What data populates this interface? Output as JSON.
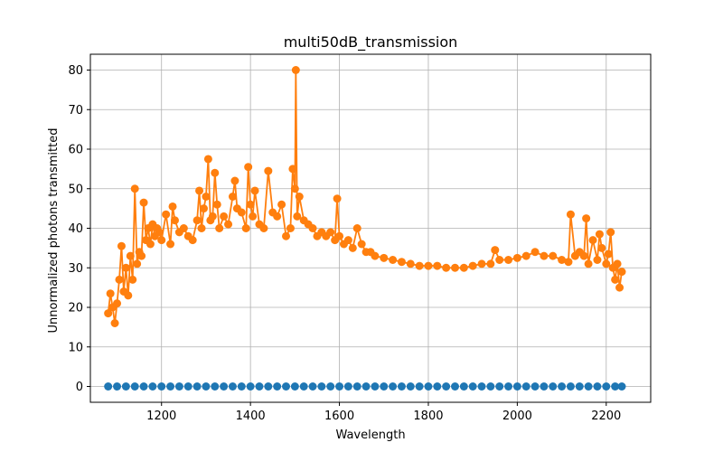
{
  "chart_data": {
    "type": "scatter",
    "title": "multi50dB_transmission",
    "xlabel": "Wavelength",
    "ylabel": "Unnormalized photons transmitted",
    "xlim": [
      1040,
      2300
    ],
    "ylim": [
      -4,
      84
    ],
    "x_ticks": [
      1200,
      1400,
      1600,
      1800,
      2000,
      2200
    ],
    "y_ticks": [
      0,
      10,
      20,
      30,
      40,
      50,
      60,
      70,
      80
    ],
    "grid": true,
    "legend": "none",
    "series": [
      {
        "color": "#1f77b4",
        "style": "markers",
        "x": [
          1080,
          1100,
          1120,
          1140,
          1160,
          1180,
          1200,
          1220,
          1240,
          1260,
          1280,
          1300,
          1320,
          1340,
          1360,
          1380,
          1400,
          1420,
          1440,
          1460,
          1480,
          1500,
          1520,
          1540,
          1560,
          1580,
          1600,
          1620,
          1640,
          1660,
          1680,
          1700,
          1720,
          1740,
          1760,
          1780,
          1800,
          1820,
          1840,
          1860,
          1880,
          1900,
          1920,
          1940,
          1960,
          1980,
          2000,
          2020,
          2040,
          2060,
          2080,
          2100,
          2120,
          2140,
          2160,
          2180,
          2200,
          2220,
          2235
        ],
        "values": [
          0,
          0,
          0,
          0,
          0,
          0,
          0,
          0,
          0,
          0,
          0,
          0,
          0,
          0,
          0,
          0,
          0,
          0,
          0,
          0,
          0,
          0,
          0,
          0,
          0,
          0,
          0,
          0,
          0,
          0,
          0,
          0,
          0,
          0,
          0,
          0,
          0,
          0,
          0,
          0,
          0,
          0,
          0,
          0,
          0,
          0,
          0,
          0,
          0,
          0,
          0,
          0,
          0,
          0,
          0,
          0,
          0,
          0,
          0
        ]
      },
      {
        "color": "#ff7f0e",
        "style": "line+markers",
        "x": [
          1080,
          1085,
          1090,
          1095,
          1100,
          1105,
          1110,
          1115,
          1120,
          1125,
          1130,
          1135,
          1140,
          1145,
          1150,
          1155,
          1160,
          1165,
          1170,
          1175,
          1180,
          1185,
          1190,
          1195,
          1200,
          1210,
          1220,
          1225,
          1230,
          1240,
          1250,
          1260,
          1270,
          1280,
          1285,
          1290,
          1295,
          1300,
          1305,
          1310,
          1315,
          1320,
          1325,
          1330,
          1340,
          1350,
          1360,
          1365,
          1370,
          1380,
          1390,
          1395,
          1400,
          1405,
          1410,
          1420,
          1430,
          1440,
          1450,
          1460,
          1470,
          1480,
          1490,
          1495,
          1500,
          1502,
          1505,
          1510,
          1520,
          1530,
          1540,
          1550,
          1560,
          1570,
          1580,
          1590,
          1595,
          1600,
          1610,
          1620,
          1630,
          1640,
          1650,
          1660,
          1670,
          1680,
          1700,
          1720,
          1740,
          1760,
          1780,
          1800,
          1820,
          1840,
          1860,
          1880,
          1900,
          1920,
          1940,
          1950,
          1960,
          1980,
          2000,
          2020,
          2040,
          2060,
          2080,
          2100,
          2115,
          2120,
          2130,
          2140,
          2150,
          2155,
          2160,
          2170,
          2180,
          2185,
          2190,
          2200,
          2205,
          2210,
          2215,
          2220,
          2225,
          2230,
          2235
        ],
        "values": [
          18.5,
          23.5,
          20,
          16,
          21,
          27,
          35.5,
          24,
          30,
          23,
          33,
          27,
          50,
          31,
          34,
          33,
          46.5,
          37,
          40,
          36,
          41,
          38,
          40,
          39,
          37,
          43.5,
          36,
          45.5,
          42,
          39,
          40,
          38,
          37,
          42,
          49.5,
          40,
          45,
          48,
          57.5,
          42,
          43,
          54,
          46,
          40,
          43,
          41,
          48,
          52,
          45,
          44,
          40,
          55.5,
          46,
          43,
          49.5,
          41,
          40,
          54.5,
          44,
          43,
          46,
          38,
          40,
          55,
          50,
          80,
          43,
          48,
          42,
          41,
          40,
          38,
          39,
          38,
          39,
          37,
          47.5,
          38,
          36,
          37,
          35,
          40,
          36,
          34,
          34,
          33,
          32.5,
          32,
          31.5,
          31,
          30.5,
          30.5,
          30.5,
          30,
          30,
          30,
          30.5,
          31,
          31,
          34.5,
          32,
          32,
          32.5,
          33,
          34,
          33,
          33,
          32,
          31.5,
          43.5,
          33,
          34,
          33,
          42.5,
          31,
          37,
          32,
          38.5,
          35,
          31,
          33.5,
          39,
          30,
          27,
          31,
          25,
          29
        ]
      }
    ]
  }
}
